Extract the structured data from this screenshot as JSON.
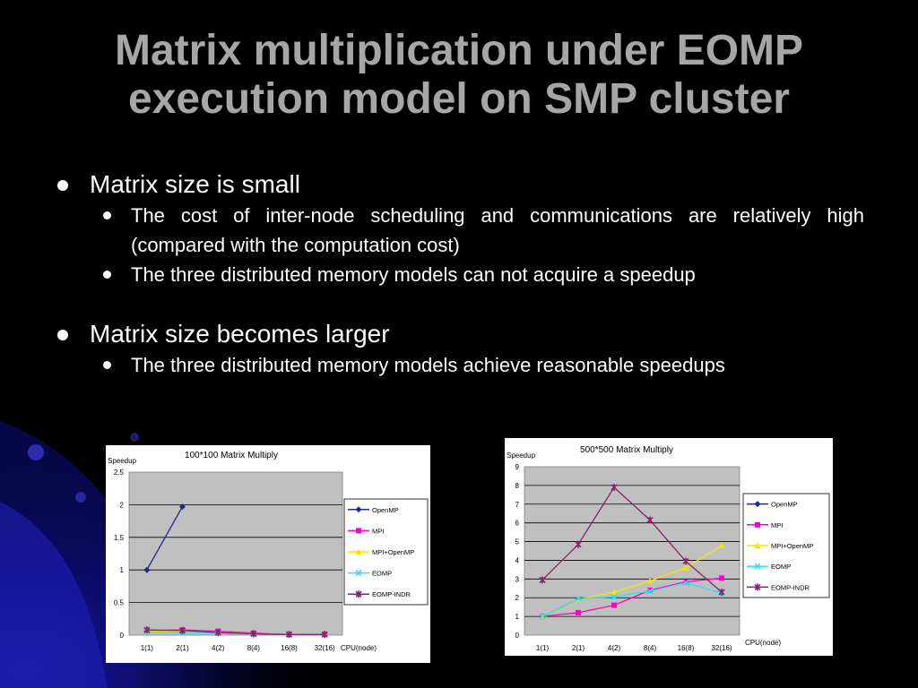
{
  "slide": {
    "title_line1": "Matrix multiplication under EOMP",
    "title_line2": "execution model on SMP cluster",
    "colors": {
      "background": "#000000",
      "title": "#a6a6a6",
      "text": "#ffffff"
    }
  },
  "bullets": [
    {
      "text": "Matrix size is small",
      "sub": [
        "The cost of inter-node scheduling and communications are relatively high (compared with the computation cost)",
        "The three distributed memory models can not acquire a speedup"
      ]
    },
    {
      "text": "Matrix size becomes larger",
      "sub": [
        "The three distributed memory models achieve reasonable speedups"
      ]
    }
  ],
  "chart_data": [
    {
      "type": "line",
      "title": "100*100 Matrix Multiply",
      "ylabel": "Speedup",
      "xlabel": "CPU(node)",
      "categories": [
        "1(1)",
        "2(1)",
        "4(2)",
        "8(4)",
        "16(8)",
        "32(16)"
      ],
      "ylim": [
        0,
        2.5
      ],
      "yticks": [
        0,
        0.5,
        1,
        1.5,
        2,
        2.5
      ],
      "ytick_labels": [
        "0",
        "0.5",
        "1",
        "1.5",
        "2",
        "2.5"
      ],
      "grid": true,
      "legend_position": "right",
      "series": [
        {
          "name": "OpenMP",
          "color": "#1f2a8c",
          "marker": "diamond",
          "values": [
            1,
            1.97,
            null,
            null,
            null,
            null
          ]
        },
        {
          "name": "MPI",
          "color": "#ff00cc",
          "marker": "square",
          "values": [
            0.07,
            0.08,
            0.06,
            0.03,
            0.01,
            0.01
          ]
        },
        {
          "name": "MPI+OpenMP",
          "color": "#f0e800",
          "marker": "triangle",
          "values": [
            0.06,
            0.06,
            0.04,
            0.02,
            0.01,
            0.01
          ]
        },
        {
          "name": "EOMP",
          "color": "#33ddee",
          "marker": "x",
          "values": [
            0.05,
            0.04,
            0.03,
            0.02,
            0.01,
            0.01
          ]
        },
        {
          "name": "EOMP-INDR",
          "color": "#882266",
          "marker": "star",
          "values": [
            0.08,
            0.07,
            0.04,
            0.02,
            0.01,
            0.01
          ]
        }
      ]
    },
    {
      "type": "line",
      "title": "500*500 Matrix Multiply",
      "ylabel": "Speedup",
      "xlabel": "CPU(node)",
      "categories": [
        "1(1)",
        "2(1)",
        "4(2)",
        "8(4)",
        "16(8)",
        "32(16)"
      ],
      "ylim": [
        0,
        9
      ],
      "yticks": [
        0,
        1,
        2,
        3,
        4,
        5,
        6,
        7,
        8,
        9
      ],
      "ytick_labels": [
        "0",
        "1",
        "2",
        "3",
        "4",
        "5",
        "6",
        "7",
        "8",
        "9"
      ],
      "grid": true,
      "legend_position": "right",
      "series": [
        {
          "name": "OpenMP",
          "color": "#1f2a8c",
          "marker": "diamond",
          "values": [
            1,
            1.9,
            null,
            null,
            null,
            null
          ]
        },
        {
          "name": "MPI",
          "color": "#ff00cc",
          "marker": "square",
          "values": [
            1,
            1.2,
            1.6,
            2.4,
            2.85,
            3.05
          ]
        },
        {
          "name": "MPI+OpenMP",
          "color": "#f0e800",
          "marker": "triangle",
          "values": [
            1,
            1.9,
            2.3,
            2.9,
            3.6,
            4.8
          ]
        },
        {
          "name": "EOMP",
          "color": "#33ddee",
          "marker": "x",
          "values": [
            1,
            1.95,
            2.05,
            2.35,
            2.8,
            2.25
          ]
        },
        {
          "name": "EOMP-INDR",
          "color": "#882266",
          "marker": "star",
          "values": [
            2.95,
            4.85,
            7.9,
            6.15,
            3.95,
            2.3
          ]
        }
      ]
    }
  ]
}
